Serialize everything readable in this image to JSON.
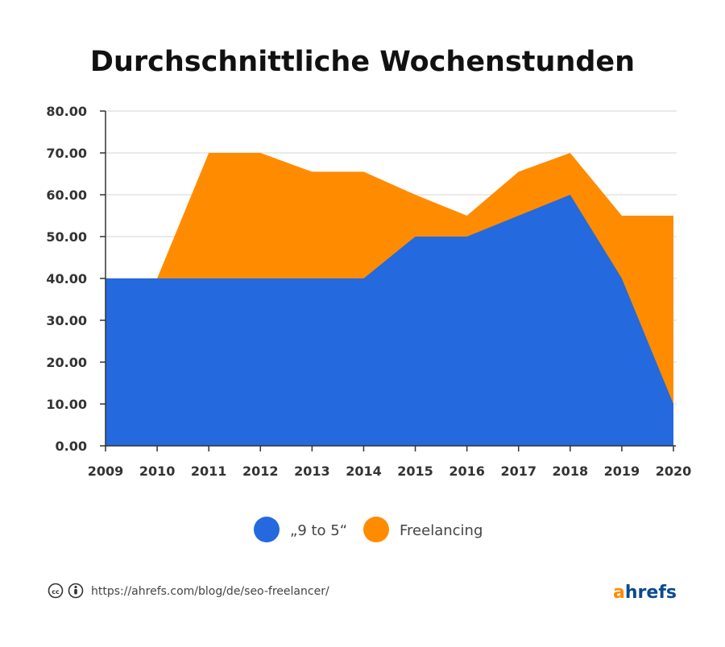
{
  "chart_data": {
    "type": "area",
    "title": "Durchschnittliche Wochenstunden",
    "x": [
      "2009",
      "2010",
      "2011",
      "2012",
      "2013",
      "2014",
      "2015",
      "2016",
      "2017",
      "2018",
      "2019",
      "2020"
    ],
    "series": [
      {
        "name": "„9 to 5“",
        "color": "#2469dd",
        "values": [
          40,
          40,
          40,
          40,
          40,
          40,
          50,
          50,
          55,
          60,
          40,
          10
        ]
      },
      {
        "name": "Freelancing",
        "color": "#ff8c00",
        "values": [
          40,
          40,
          70,
          70,
          65.5,
          65.5,
          60,
          55,
          65.5,
          70,
          55,
          55
        ]
      }
    ],
    "ylim": [
      0,
      80
    ],
    "yticks": [
      "0.00",
      "10.00",
      "20.00",
      "30.00",
      "40.00",
      "50.00",
      "60.00",
      "70.00",
      "80.00"
    ],
    "grid": true,
    "legend_position": "bottom-center"
  },
  "footer": {
    "source_url": "https://ahrefs.com/blog/de/seo-freelancer/",
    "license_icons": [
      "cc-icon",
      "attribution-icon"
    ],
    "logo_first": "a",
    "logo_rest": "hrefs",
    "logo_first_color": "#ff8c00",
    "logo_rest_color": "#0b4a8f"
  }
}
